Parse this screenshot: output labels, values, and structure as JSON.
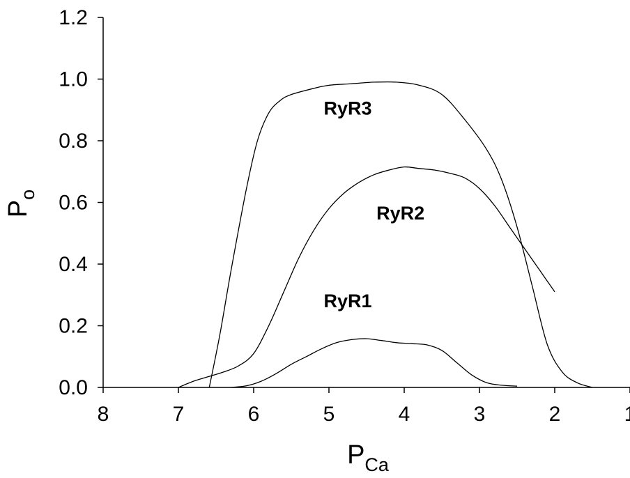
{
  "chart_data": {
    "type": "line",
    "xlabel": {
      "main": "P",
      "sub": "Ca"
    },
    "ylabel": {
      "main": "P",
      "sub": "o"
    },
    "xlim": [
      8,
      1
    ],
    "ylim": [
      0,
      1.2
    ],
    "x_reversed": true,
    "grid": false,
    "x_ticks": [
      8,
      7,
      6,
      5,
      4,
      3,
      2,
      1
    ],
    "x_tick_labels": [
      "8",
      "7",
      "6",
      "5",
      "4",
      "3",
      "2",
      "1"
    ],
    "y_ticks": [
      0,
      0.2,
      0.4,
      0.6,
      0.8,
      1.0,
      1.2
    ],
    "y_tick_labels": [
      "0.0",
      "0.2",
      "0.4",
      "0.6",
      "0.8",
      "1.0",
      "1.2"
    ],
    "series": [
      {
        "name": "RyR3",
        "label_at": {
          "x": 4.75,
          "y": 0.885
        },
        "x": [
          6.59,
          6.45,
          6.3,
          6.1,
          5.95,
          5.8,
          5.65,
          5.5,
          5.2,
          5.0,
          4.7,
          4.4,
          4.1,
          3.8,
          3.5,
          3.2,
          2.9,
          2.7,
          2.5,
          2.3,
          2.1,
          1.9,
          1.7,
          1.5
        ],
        "y": [
          0.0,
          0.17,
          0.38,
          0.64,
          0.8,
          0.89,
          0.93,
          0.95,
          0.97,
          0.98,
          0.985,
          0.99,
          0.99,
          0.98,
          0.95,
          0.87,
          0.77,
          0.67,
          0.52,
          0.33,
          0.14,
          0.05,
          0.015,
          0.0
        ]
      },
      {
        "name": "RyR2",
        "label_at": {
          "x": 4.05,
          "y": 0.545
        },
        "x": [
          7.0,
          6.8,
          6.6,
          6.4,
          6.2,
          6.0,
          5.8,
          5.6,
          5.4,
          5.2,
          5.0,
          4.8,
          4.6,
          4.4,
          4.2,
          4.0,
          3.8,
          3.6,
          3.4,
          3.2,
          3.0,
          2.8,
          2.6,
          2.4,
          2.2,
          2.0
        ],
        "y": [
          0.0,
          0.02,
          0.035,
          0.05,
          0.07,
          0.11,
          0.2,
          0.31,
          0.42,
          0.51,
          0.58,
          0.63,
          0.665,
          0.69,
          0.705,
          0.715,
          0.71,
          0.705,
          0.695,
          0.68,
          0.645,
          0.59,
          0.52,
          0.45,
          0.38,
          0.31
        ]
      },
      {
        "name": "RyR1",
        "label_at": {
          "x": 4.75,
          "y": 0.26
        },
        "x": [
          6.3,
          6.1,
          5.9,
          5.7,
          5.5,
          5.3,
          5.1,
          4.9,
          4.7,
          4.5,
          4.3,
          4.1,
          3.9,
          3.7,
          3.5,
          3.3,
          3.1,
          2.9,
          2.7,
          2.5
        ],
        "y": [
          0.0,
          0.005,
          0.02,
          0.045,
          0.075,
          0.1,
          0.125,
          0.145,
          0.155,
          0.158,
          0.152,
          0.145,
          0.142,
          0.138,
          0.12,
          0.08,
          0.04,
          0.015,
          0.007,
          0.004
        ]
      }
    ]
  }
}
